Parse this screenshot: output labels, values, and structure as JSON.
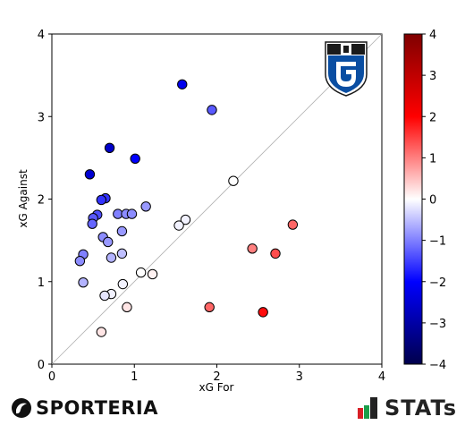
{
  "chart_data": {
    "type": "scatter",
    "xlabel": "xG For",
    "ylabel": "xG Against",
    "xlim": [
      0,
      4
    ],
    "ylim": [
      0,
      4
    ],
    "xticks": [
      0,
      1,
      2,
      3,
      4
    ],
    "yticks": [
      0,
      1,
      2,
      3,
      4
    ],
    "grid": false,
    "diagonal_reference_line": true,
    "colorbar": {
      "range": [
        -4,
        4
      ],
      "ticks": [
        4,
        3,
        2,
        1,
        0,
        -1,
        -2,
        -3,
        -4
      ],
      "colormap": "seismic",
      "colors": {
        "negative": "#000050",
        "mid_negative": "#0000ff",
        "zero": "#ffffff",
        "mid_positive": "#ff0000",
        "positive": "#800000"
      }
    },
    "points": [
      {
        "x": 1.58,
        "y": 3.39,
        "c": -2.2
      },
      {
        "x": 1.94,
        "y": 3.08,
        "c": -1.3
      },
      {
        "x": 0.7,
        "y": 2.62,
        "c": -2.6
      },
      {
        "x": 1.01,
        "y": 2.49,
        "c": -2.0
      },
      {
        "x": 0.46,
        "y": 2.3,
        "c": -2.5
      },
      {
        "x": 2.2,
        "y": 2.22,
        "c": 0.0
      },
      {
        "x": 0.65,
        "y": 2.01,
        "c": -1.6
      },
      {
        "x": 0.6,
        "y": 1.99,
        "c": -1.6
      },
      {
        "x": 1.14,
        "y": 1.91,
        "c": -0.8
      },
      {
        "x": 0.8,
        "y": 1.82,
        "c": -1.0
      },
      {
        "x": 0.9,
        "y": 1.82,
        "c": -0.9
      },
      {
        "x": 0.97,
        "y": 1.82,
        "c": -0.9
      },
      {
        "x": 0.55,
        "y": 1.81,
        "c": -1.4
      },
      {
        "x": 0.5,
        "y": 1.77,
        "c": -1.3
      },
      {
        "x": 0.49,
        "y": 1.7,
        "c": -1.2
      },
      {
        "x": 1.62,
        "y": 1.75,
        "c": -0.1
      },
      {
        "x": 1.54,
        "y": 1.68,
        "c": -0.1
      },
      {
        "x": 2.92,
        "y": 1.69,
        "c": 1.2
      },
      {
        "x": 0.85,
        "y": 1.61,
        "c": -0.8
      },
      {
        "x": 0.62,
        "y": 1.54,
        "c": -0.9
      },
      {
        "x": 0.68,
        "y": 1.48,
        "c": -0.8
      },
      {
        "x": 2.43,
        "y": 1.4,
        "c": 1.0
      },
      {
        "x": 2.71,
        "y": 1.34,
        "c": 1.4
      },
      {
        "x": 0.85,
        "y": 1.34,
        "c": -0.5
      },
      {
        "x": 0.38,
        "y": 1.33,
        "c": -1.0
      },
      {
        "x": 0.72,
        "y": 1.29,
        "c": -0.6
      },
      {
        "x": 0.34,
        "y": 1.25,
        "c": -0.9
      },
      {
        "x": 1.08,
        "y": 1.11,
        "c": 0.0
      },
      {
        "x": 1.22,
        "y": 1.09,
        "c": 0.1
      },
      {
        "x": 0.38,
        "y": 0.99,
        "c": -0.6
      },
      {
        "x": 0.86,
        "y": 0.97,
        "c": -0.1
      },
      {
        "x": 0.72,
        "y": 0.85,
        "c": -0.1
      },
      {
        "x": 0.64,
        "y": 0.83,
        "c": -0.2
      },
      {
        "x": 1.91,
        "y": 0.69,
        "c": 1.2
      },
      {
        "x": 0.91,
        "y": 0.69,
        "c": 0.2
      },
      {
        "x": 2.56,
        "y": 0.63,
        "c": 1.9
      },
      {
        "x": 0.6,
        "y": 0.39,
        "c": 0.2
      }
    ]
  },
  "logos": {
    "club_crest": "gamba-osaka-crest",
    "crest_colors": {
      "black": "#1a1a1a",
      "blue": "#0a4ea2",
      "white": "#ffffff"
    },
    "left_brand": "SPORTERIA",
    "right_brand": "STATs",
    "right_brand_colors": {
      "red": "#d81f26",
      "green": "#1b9e4a",
      "dark": "#222222"
    }
  }
}
